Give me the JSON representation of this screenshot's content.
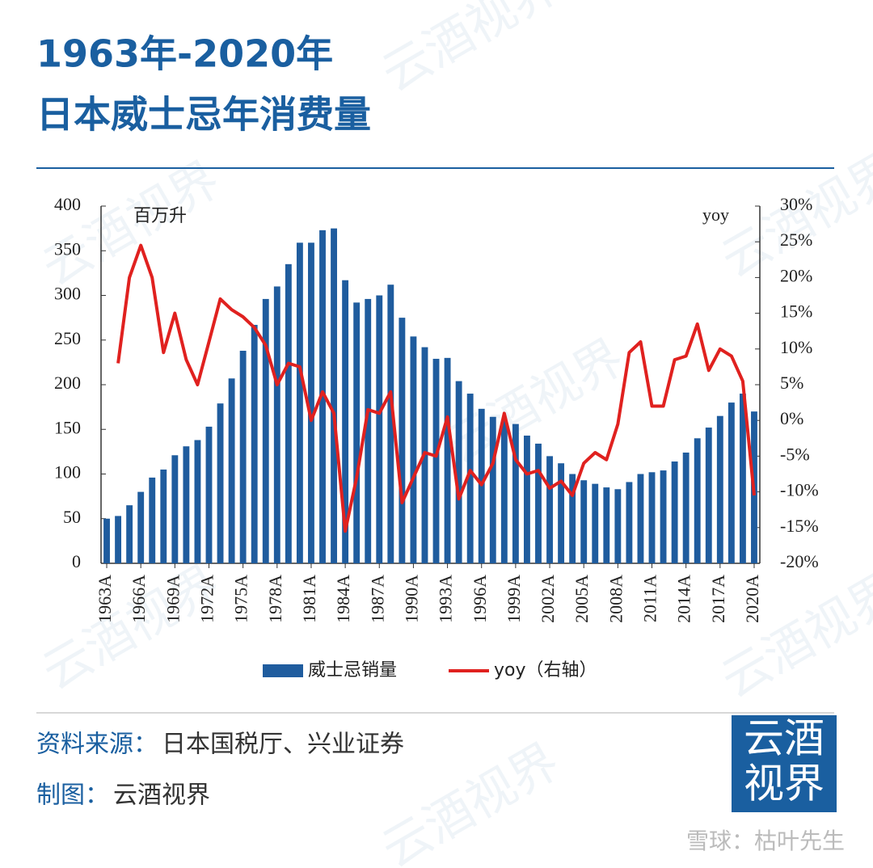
{
  "header": {
    "title_line1": "1963年-2020年",
    "title_line2": "日本威士忌年消费量"
  },
  "chart_data": {
    "type": "bar-line",
    "y_unit": "百万升",
    "y2_unit": "yoy",
    "categories": [
      "1963A",
      null,
      null,
      "1966A",
      null,
      null,
      "1969A",
      null,
      null,
      "1972A",
      null,
      null,
      "1975A",
      null,
      null,
      "1978A",
      null,
      null,
      "1981A",
      null,
      null,
      "1984A",
      null,
      null,
      "1987A",
      null,
      null,
      "1990A",
      null,
      null,
      "1993A",
      null,
      null,
      "1996A",
      null,
      null,
      "1999A",
      null,
      null,
      "2002A",
      null,
      null,
      "2005A",
      null,
      null,
      "2008A",
      null,
      null,
      "2011A",
      null,
      null,
      "2014A",
      null,
      null,
      "2017A",
      null,
      null,
      "2020A"
    ],
    "series": [
      {
        "name": "威士忌销量",
        "color": "#1f5c9e",
        "type": "bar",
        "values": [
          50,
          53,
          65,
          80,
          96,
          105,
          121,
          131,
          138,
          153,
          179,
          207,
          238,
          267,
          296,
          310,
          335,
          359,
          359,
          373,
          375,
          317,
          292,
          296,
          300,
          312,
          275,
          254,
          242,
          229,
          230,
          204,
          190,
          173,
          164,
          160,
          156,
          143,
          134,
          120,
          112,
          100,
          93,
          89,
          85,
          83,
          91,
          100,
          102,
          104,
          114,
          124,
          140,
          152,
          165,
          180,
          190,
          170
        ]
      },
      {
        "name": "yoy（右轴）",
        "color": "#e0211f",
        "type": "line",
        "axis": "y2",
        "values": [
          null,
          8,
          20,
          24.5,
          20,
          9.5,
          15,
          8.5,
          5,
          11,
          17,
          15.5,
          14.5,
          13,
          10.5,
          5,
          8,
          7.5,
          0,
          4,
          1,
          -15.5,
          -8,
          1.5,
          1,
          4,
          -11.5,
          -8,
          -4.5,
          -5,
          0.5,
          -11,
          -7,
          -9,
          -6,
          1,
          -5.5,
          -7.5,
          -7,
          -9.5,
          -8.5,
          -10.5,
          -6,
          -4.5,
          -5.5,
          -0.5,
          9.5,
          11,
          2,
          2,
          8.5,
          9,
          13.5,
          7,
          10,
          9,
          5.5,
          -10.5
        ]
      }
    ],
    "ylim": [
      0,
      400
    ],
    "yticks": [
      0,
      50,
      100,
      150,
      200,
      250,
      300,
      350,
      400
    ],
    "y2lim": [
      -20,
      30
    ],
    "y2ticks": [
      {
        "value": -20,
        "label": "-20%"
      },
      {
        "value": -15,
        "label": "-15%"
      },
      {
        "value": -10,
        "label": "-10%"
      },
      {
        "value": -5,
        "label": "-5%"
      },
      {
        "value": 0,
        "label": "0%"
      },
      {
        "value": 5,
        "label": "5%"
      },
      {
        "value": 10,
        "label": "10%"
      },
      {
        "value": 15,
        "label": "15%"
      },
      {
        "value": 20,
        "label": "20%"
      },
      {
        "value": 25,
        "label": "25%"
      },
      {
        "value": 30,
        "label": "30%"
      }
    ],
    "legend": "bottom"
  },
  "footer": {
    "source_label": "资料来源：",
    "source": "日本国税厅、兴业证券",
    "maker_label": "制图：",
    "maker": "云酒视界",
    "logo_line1": "云酒",
    "logo_line2": "视界",
    "credit": "雪球：枯叶先生",
    "watermark": "云酒视界"
  }
}
